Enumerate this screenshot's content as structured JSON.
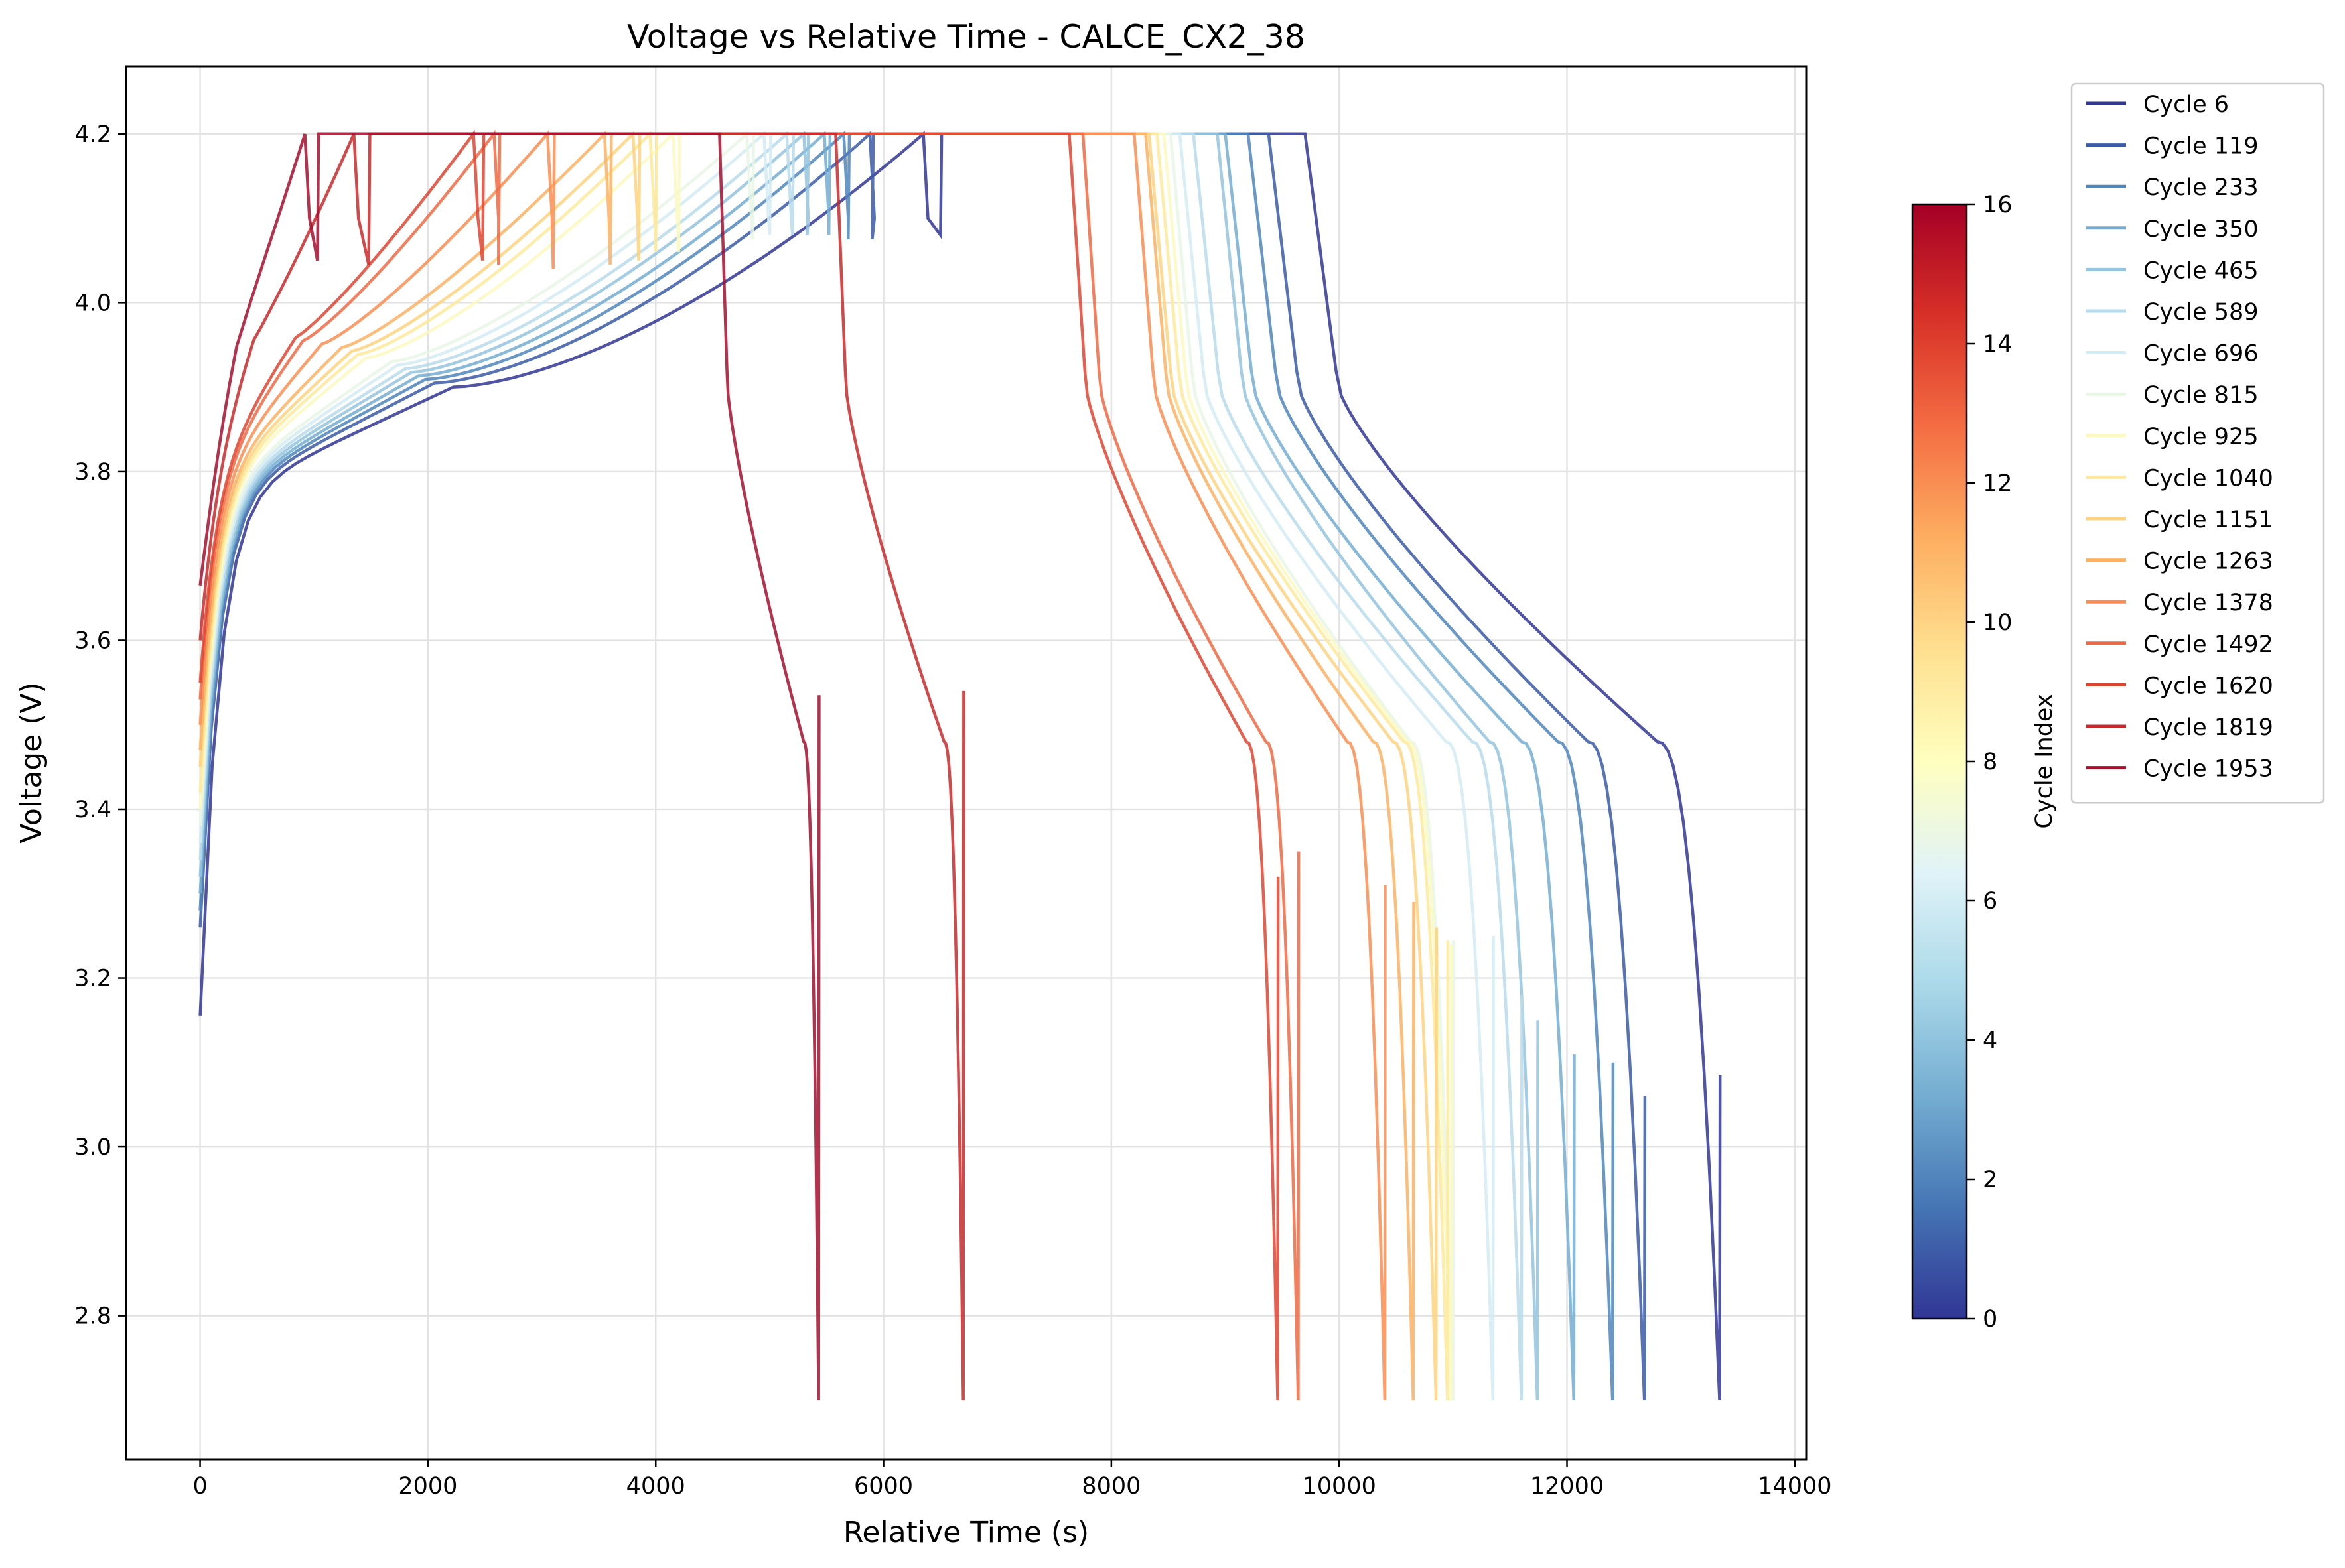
{
  "chart_data": {
    "type": "line",
    "title": "Voltage vs Relative Time - CALCE_CX2_38",
    "xlabel": "Relative Time (s)",
    "ylabel": "Voltage (V)",
    "xlim": [
      -650,
      14100
    ],
    "ylim": [
      2.63,
      4.28
    ],
    "xticks": [
      0,
      2000,
      4000,
      6000,
      8000,
      10000,
      12000,
      14000
    ],
    "yticks": [
      2.8,
      3.0,
      3.2,
      3.4,
      3.6,
      3.8,
      4.0,
      4.2
    ],
    "grid": true,
    "legend_position": "outside-right",
    "colorbar": {
      "label": "Cycle Index",
      "range": [
        0,
        16
      ],
      "ticks": [
        0,
        2,
        4,
        6,
        8,
        10,
        12,
        14,
        16
      ],
      "colormap": "RdYlBu_r"
    },
    "series": [
      {
        "name": "Cycle 6",
        "color": "#313695",
        "charge_start": [
          0,
          3.155
        ],
        "cc_end": 6350,
        "cv_end": 6500,
        "cv_low": 4.08,
        "rest_end": 9700,
        "disch_end": 13340,
        "spike": 3.085,
        "shape": 0.0
      },
      {
        "name": "Cycle 119",
        "color": "#3b5ba7",
        "charge_start": [
          0,
          3.26
        ],
        "cc_end": 5880,
        "cv_end": 5900,
        "cv_low": 4.075,
        "rest_end": 9380,
        "disch_end": 12680,
        "spike": 3.06,
        "shape": 0.07
      },
      {
        "name": "Cycle 233",
        "color": "#4f86bc",
        "charge_start": [
          0,
          3.28
        ],
        "cc_end": 5650,
        "cv_end": 5690,
        "cv_low": 4.075,
        "rest_end": 9200,
        "disch_end": 12400,
        "spike": 3.1,
        "shape": 0.13
      },
      {
        "name": "Cycle 350",
        "color": "#74add1",
        "charge_start": [
          0,
          3.3
        ],
        "cc_end": 5480,
        "cv_end": 5520,
        "cv_low": 4.08,
        "rest_end": 9000,
        "disch_end": 12060,
        "spike": 3.11,
        "shape": 0.19
      },
      {
        "name": "Cycle 465",
        "color": "#94c4de",
        "charge_start": [
          0,
          3.32
        ],
        "cc_end": 5300,
        "cv_end": 5330,
        "cv_low": 4.08,
        "rest_end": 8930,
        "disch_end": 11740,
        "spike": 3.15,
        "shape": 0.25
      },
      {
        "name": "Cycle 589",
        "color": "#b7dbeb",
        "charge_start": [
          0,
          3.34
        ],
        "cc_end": 5150,
        "cv_end": 5200,
        "cv_low": 4.08,
        "rest_end": 8720,
        "disch_end": 11600,
        "spike": 3.18,
        "shape": 0.31
      },
      {
        "name": "Cycle 696",
        "color": "#d3ebf3",
        "charge_start": [
          0,
          3.36
        ],
        "cc_end": 4950,
        "cv_end": 5000,
        "cv_low": 4.08,
        "rest_end": 8600,
        "disch_end": 11350,
        "spike": 3.25,
        "shape": 0.37
      },
      {
        "name": "Cycle 815",
        "color": "#e8f6e4",
        "charge_start": [
          0,
          3.38
        ],
        "cc_end": 4800,
        "cv_end": 4850,
        "cv_low": 4.075,
        "rest_end": 8520,
        "disch_end": 11000,
        "spike": 3.245,
        "shape": 0.43
      },
      {
        "name": "Cycle 925",
        "color": "#fbf9c0",
        "charge_start": [
          0,
          3.4
        ],
        "cc_end": 4150,
        "cv_end": 4200,
        "cv_low": 4.06,
        "rest_end": 8460,
        "disch_end": 10980,
        "spike": 3.24,
        "shape": 0.49
      },
      {
        "name": "Cycle 1040",
        "color": "#fee99a",
        "charge_start": [
          0,
          3.42
        ],
        "cc_end": 3950,
        "cv_end": 4000,
        "cv_low": 4.06,
        "rest_end": 8400,
        "disch_end": 10950,
        "spike": 3.245,
        "shape": 0.55
      },
      {
        "name": "Cycle 1151",
        "color": "#fed27e",
        "charge_start": [
          0,
          3.45
        ],
        "cc_end": 3800,
        "cv_end": 3850,
        "cv_low": 4.05,
        "rest_end": 8330,
        "disch_end": 10850,
        "spike": 3.26,
        "shape": 0.61
      },
      {
        "name": "Cycle 1263",
        "color": "#fdb263",
        "charge_start": [
          0,
          3.47
        ],
        "cc_end": 3550,
        "cv_end": 3600,
        "cv_low": 4.045,
        "rest_end": 8300,
        "disch_end": 10650,
        "spike": 3.29,
        "shape": 0.67
      },
      {
        "name": "Cycle 1378",
        "color": "#f98e52",
        "charge_start": [
          0,
          3.5
        ],
        "cc_end": 3050,
        "cv_end": 3100,
        "cv_low": 4.04,
        "rest_end": 8200,
        "disch_end": 10400,
        "spike": 3.31,
        "shape": 0.73
      },
      {
        "name": "Cycle 1492",
        "color": "#ee6a44",
        "charge_start": [
          0,
          3.53
        ],
        "cc_end": 2580,
        "cv_end": 2620,
        "cv_low": 4.045,
        "rest_end": 7750,
        "disch_end": 9640,
        "spike": 3.35,
        "shape": 0.79
      },
      {
        "name": "Cycle 1620",
        "color": "#de4531",
        "charge_start": [
          0,
          3.55
        ],
        "cc_end": 2400,
        "cv_end": 2480,
        "cv_low": 4.05,
        "rest_end": 7630,
        "disch_end": 9460,
        "spike": 3.32,
        "shape": 0.85
      },
      {
        "name": "Cycle 1819",
        "color": "#c72a2c",
        "charge_start": [
          0,
          3.6
        ],
        "cc_end": 1350,
        "cv_end": 1480,
        "cv_low": 4.045,
        "rest_end": 5580,
        "disch_end": 6700,
        "spike": 3.54,
        "shape": 0.92
      },
      {
        "name": "Cycle 1953",
        "color": "#a50f2e",
        "charge_start": [
          0,
          3.665
        ],
        "cc_end": 920,
        "cv_end": 1030,
        "cv_low": 4.05,
        "rest_end": 4560,
        "disch_end": 5430,
        "spike": 3.535,
        "shape": 1.0
      }
    ]
  }
}
